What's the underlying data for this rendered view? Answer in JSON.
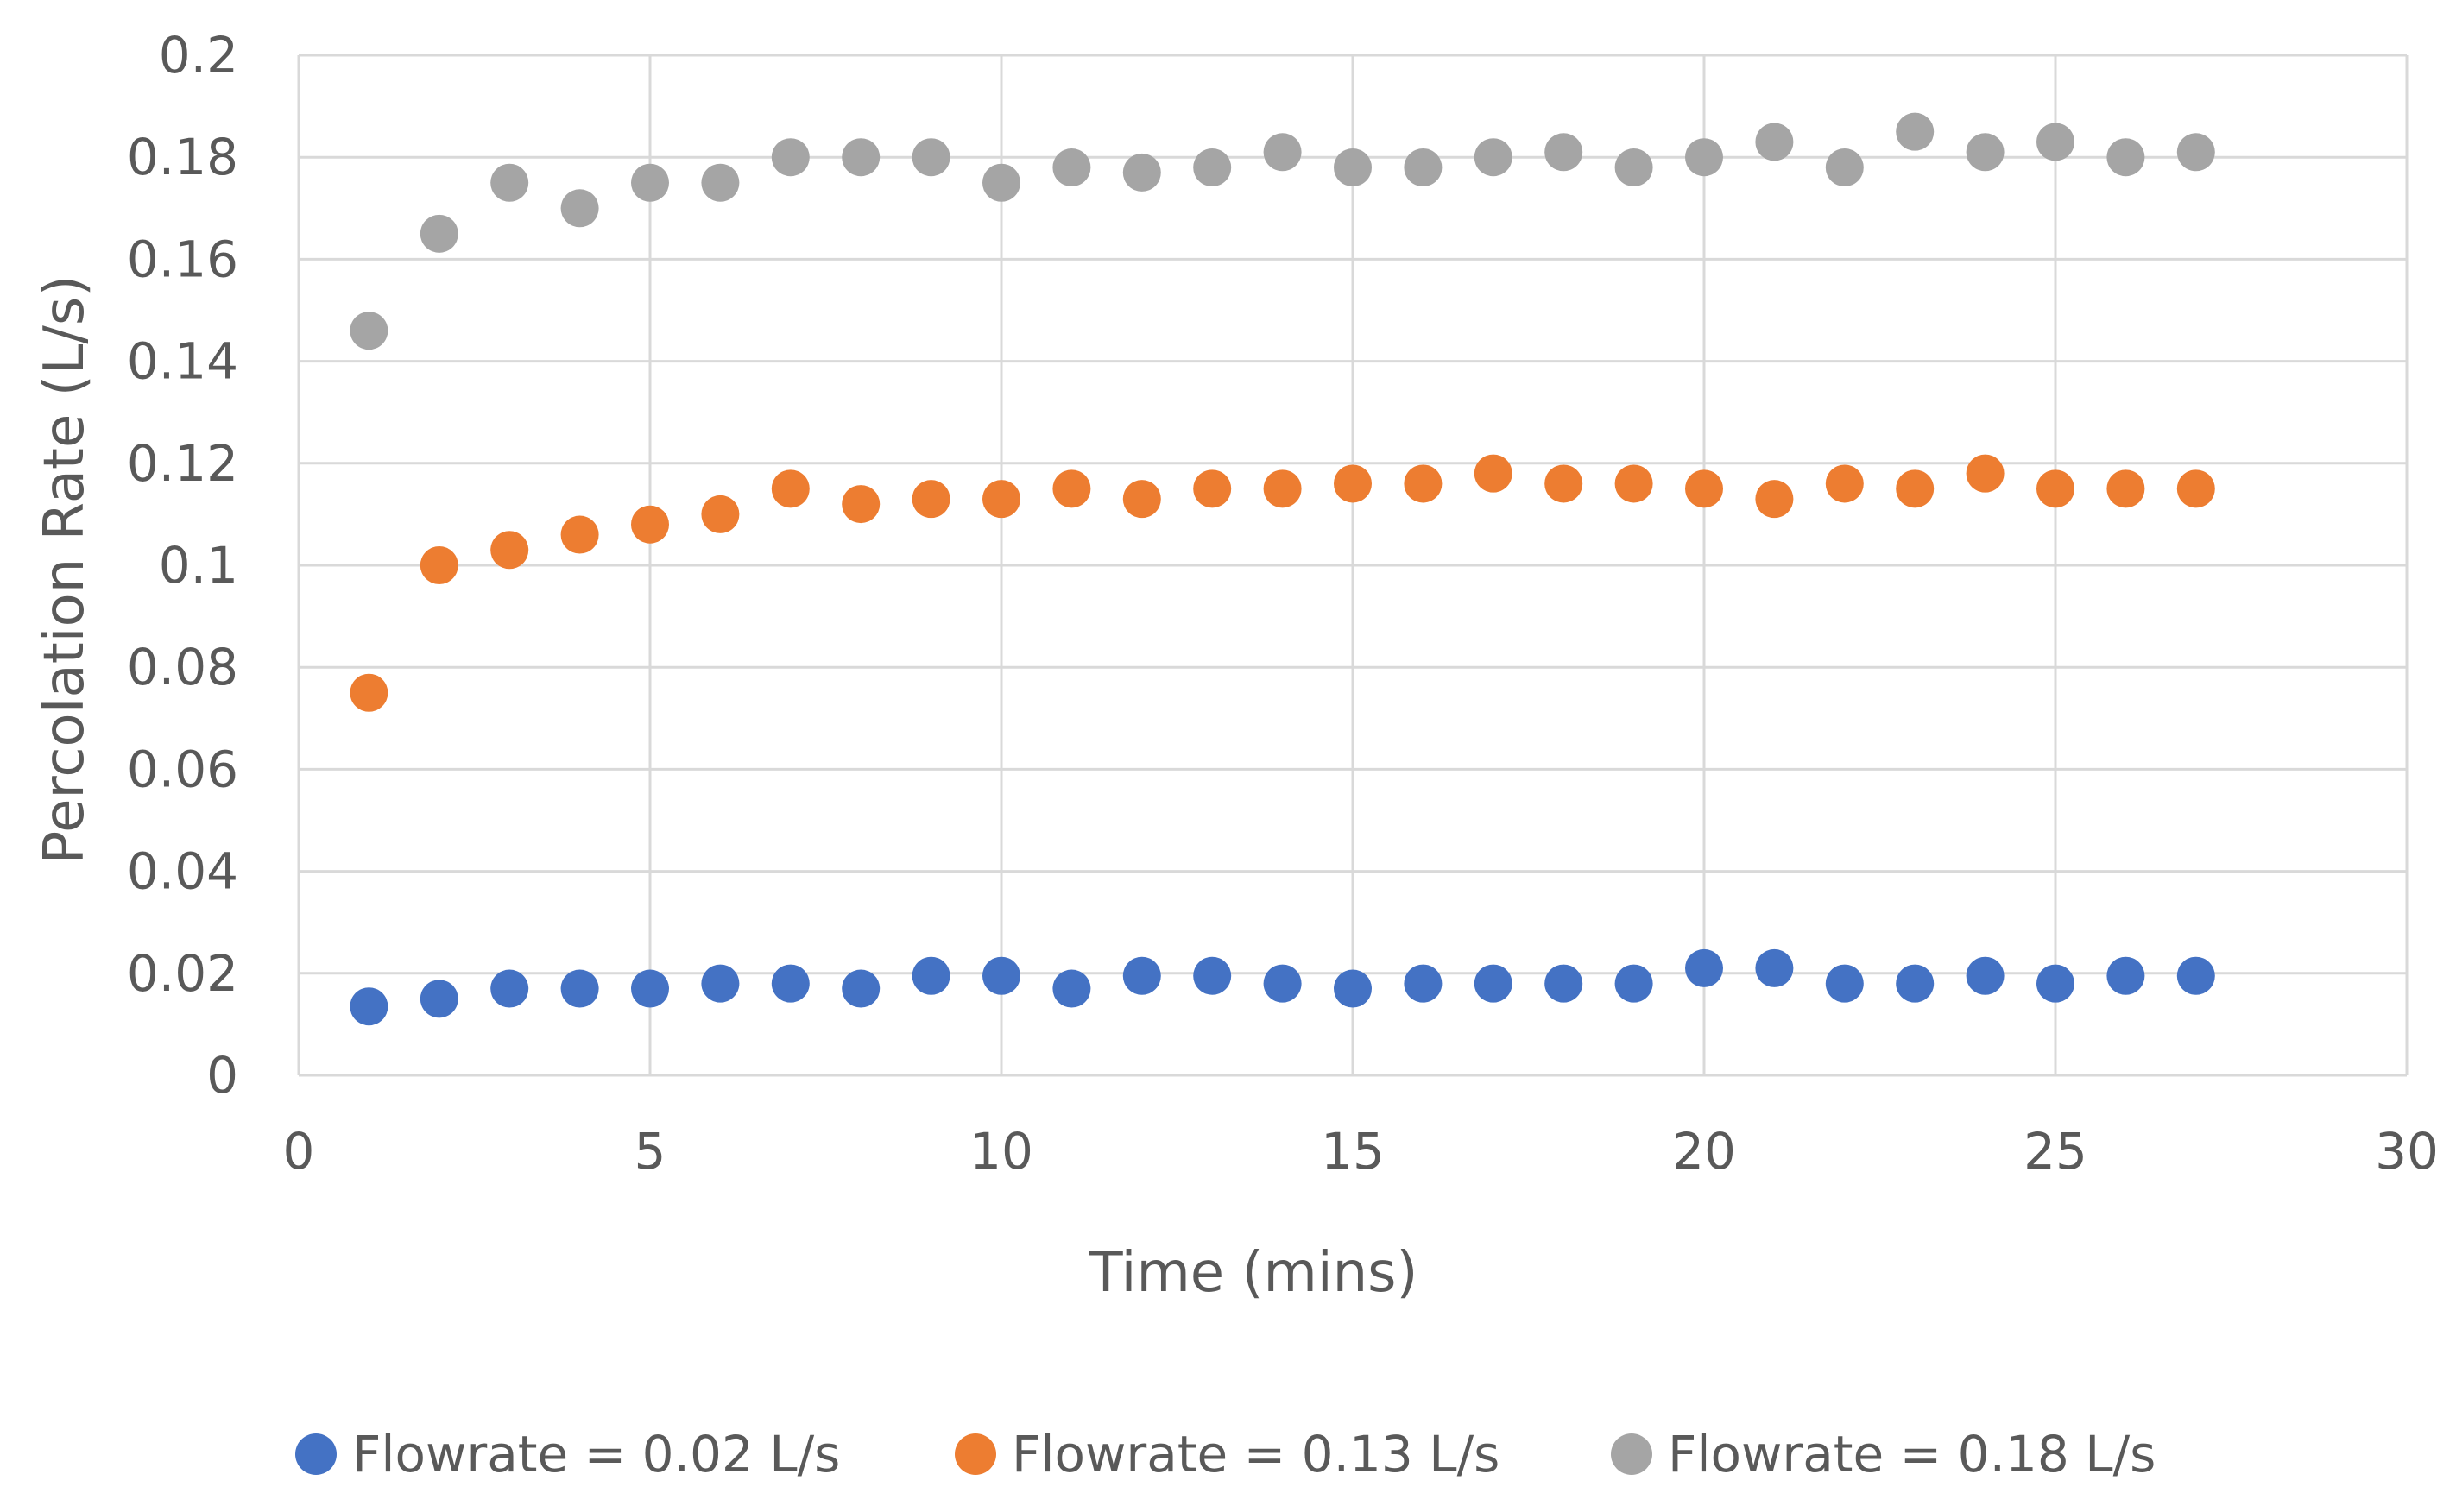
{
  "chart_data": {
    "type": "scatter",
    "title": "",
    "xlabel": "Time (mins)",
    "ylabel": "Percolation Rate (L/s)",
    "xlim": [
      0,
      30
    ],
    "ylim": [
      0,
      0.2
    ],
    "xticks": [
      0,
      5,
      10,
      15,
      20,
      25,
      30
    ],
    "yticks": [
      0,
      0.02,
      0.04,
      0.06,
      0.08,
      0.1,
      0.12,
      0.14,
      0.16,
      0.18,
      0.2
    ],
    "xtick_labels": [
      "0",
      "5",
      "10",
      "15",
      "20",
      "25",
      "30"
    ],
    "ytick_labels": [
      "0",
      "0.02",
      "0.04",
      "0.06",
      "0.08",
      "0.1",
      "0.12",
      "0.14",
      "0.16",
      "0.18",
      "0.2"
    ],
    "grid": true,
    "legend_position": "bottom",
    "x": [
      1,
      2,
      3,
      4,
      5,
      6,
      7,
      8,
      9,
      10,
      11,
      12,
      13,
      14,
      15,
      16,
      17,
      18,
      19,
      20,
      21,
      22,
      23,
      24,
      25,
      26,
      27
    ],
    "series": [
      {
        "name": "Flowrate = 0.02 L/s",
        "color": "#4472C4",
        "values": [
          0.0135,
          0.015,
          0.017,
          0.017,
          0.017,
          0.018,
          0.018,
          0.017,
          0.0195,
          0.0195,
          0.017,
          0.0195,
          0.0195,
          0.018,
          0.017,
          0.018,
          0.018,
          0.018,
          0.018,
          0.021,
          0.021,
          0.018,
          0.018,
          0.0195,
          0.018,
          0.0195,
          0.0195
        ]
      },
      {
        "name": "Flowrate = 0.13 L/s",
        "color": "#ED7D31",
        "values": [
          0.075,
          0.1,
          0.103,
          0.106,
          0.108,
          0.11,
          0.115,
          0.112,
          0.113,
          0.113,
          0.115,
          0.113,
          0.115,
          0.115,
          0.116,
          0.116,
          0.118,
          0.116,
          0.116,
          0.115,
          0.113,
          0.116,
          0.115,
          0.118,
          0.115,
          0.115,
          0.115
        ]
      },
      {
        "name": "Flowrate = 0.18 L/s",
        "color": "#A5A5A5",
        "values": [
          0.146,
          0.165,
          0.175,
          0.17,
          0.175,
          0.175,
          0.18,
          0.18,
          0.18,
          0.175,
          0.178,
          0.177,
          0.178,
          0.181,
          0.178,
          0.178,
          0.18,
          0.181,
          0.178,
          0.18,
          0.183,
          0.178,
          0.185,
          0.181,
          0.183,
          0.18,
          0.181
        ]
      }
    ]
  },
  "colors": {
    "grid": "#D9D9D9",
    "text": "#595959"
  }
}
